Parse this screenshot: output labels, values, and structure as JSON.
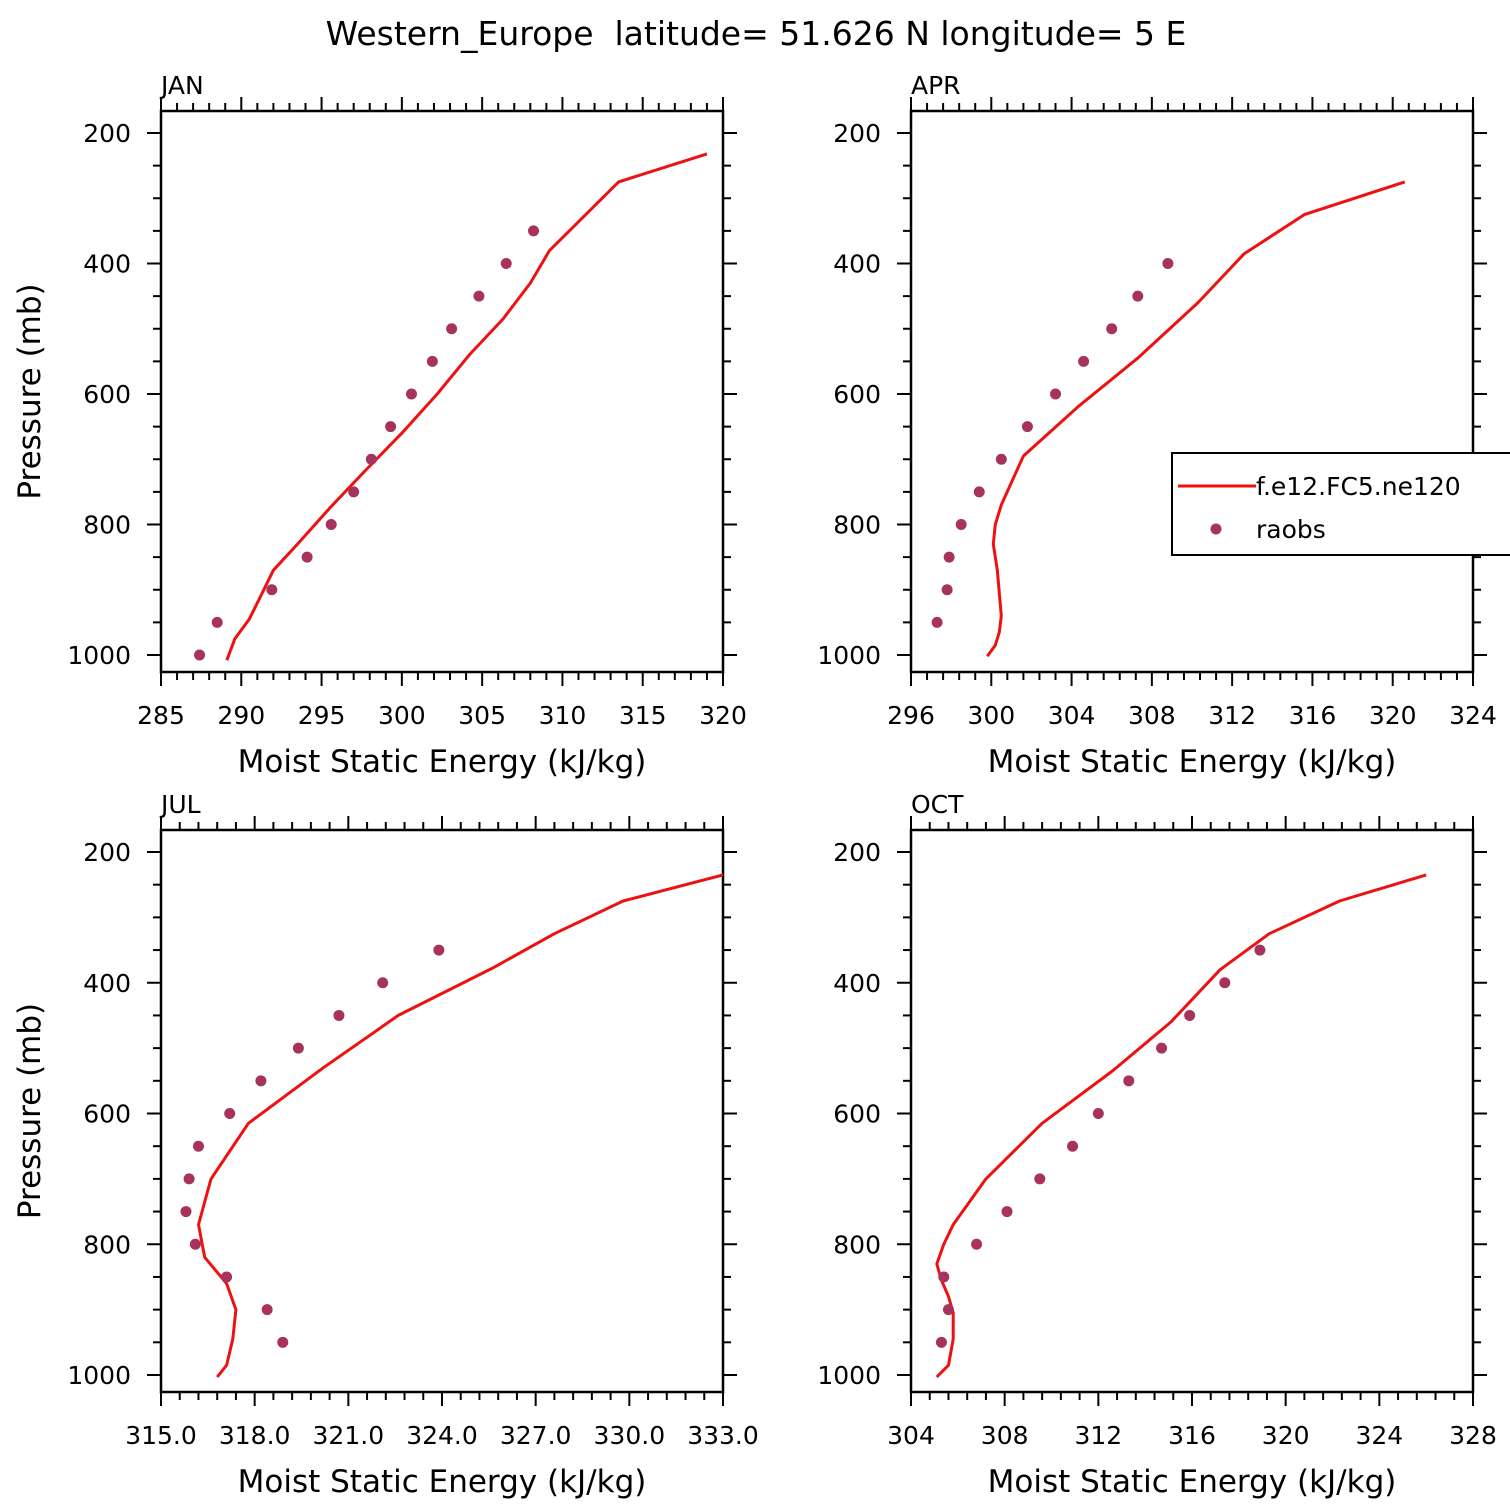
{
  "figure_title": "Western_Europe  latitude= 51.626 N longitude= 5 E",
  "colors": {
    "model": "#ee1111",
    "obs": "#a8325e",
    "axis": "#000000"
  },
  "legend": {
    "model_label": "f.e12.FC5.ne120",
    "obs_label": "raobs",
    "panel": "APR"
  },
  "chart_data": [
    {
      "panel": "JAN",
      "type": "line",
      "title": "JAN",
      "xlabel": "Moist Static Energy (kJ/kg)",
      "ylabel": "Pressure (mb)",
      "xlim": [
        285,
        320
      ],
      "ylim": [
        1000,
        200
      ],
      "x_ticks": [
        285,
        290,
        295,
        300,
        305,
        310,
        315,
        320
      ],
      "x_tick_labels": [
        "285",
        "290",
        "295",
        "300",
        "305",
        "310",
        "315",
        "320"
      ],
      "y_ticks": [
        200,
        400,
        600,
        800,
        1000
      ],
      "y_tick_labels": [
        "200",
        "400",
        "600",
        "800",
        "1000"
      ],
      "series": [
        {
          "name": "f.e12.FC5.ne120",
          "kind": "line",
          "x": [
            289.1,
            289.6,
            290.5,
            291.2,
            292.0,
            293.5,
            295.5,
            297.7,
            300.0,
            302.2,
            304.2,
            306.3,
            308.0,
            309.2,
            313.5,
            319.0
          ],
          "y": [
            1008,
            975,
            945,
            910,
            870,
            830,
            775,
            718,
            660,
            600,
            540,
            485,
            430,
            380,
            275,
            232
          ]
        },
        {
          "name": "raobs",
          "kind": "scatter",
          "x": [
            287.4,
            288.5,
            291.9,
            294.1,
            295.6,
            297.0,
            298.1,
            299.3,
            300.6,
            301.9,
            303.1,
            304.8,
            306.5,
            308.2
          ],
          "y": [
            1000,
            950,
            900,
            850,
            800,
            750,
            700,
            650,
            600,
            550,
            500,
            450,
            400,
            350
          ]
        }
      ]
    },
    {
      "panel": "APR",
      "type": "line",
      "title": "APR",
      "xlabel": "Moist Static Energy (kJ/kg)",
      "ylabel": "",
      "xlim": [
        296,
        324
      ],
      "ylim": [
        1000,
        200
      ],
      "x_ticks": [
        296,
        300,
        304,
        308,
        312,
        316,
        320,
        324
      ],
      "x_tick_labels": [
        "296",
        "300",
        "304",
        "308",
        "312",
        "316",
        "320",
        "324"
      ],
      "y_ticks": [
        200,
        400,
        600,
        800,
        1000
      ],
      "y_tick_labels": [
        "200",
        "400",
        "600",
        "800",
        "1000"
      ],
      "series": [
        {
          "name": "f.e12.FC5.ne120",
          "kind": "line",
          "x": [
            299.8,
            300.2,
            300.4,
            300.5,
            300.4,
            300.3,
            300.1,
            300.2,
            300.5,
            301.6,
            304.3,
            307.3,
            310.3,
            312.6,
            315.6,
            320.6
          ],
          "y": [
            1002,
            985,
            965,
            940,
            905,
            870,
            830,
            800,
            770,
            695,
            620,
            545,
            460,
            385,
            325,
            275
          ]
        },
        {
          "name": "raobs",
          "kind": "scatter",
          "x": [
            297.3,
            297.8,
            297.9,
            298.5,
            299.4,
            300.5,
            301.8,
            303.2,
            304.6,
            306.0,
            307.3,
            308.8
          ],
          "y": [
            950,
            900,
            850,
            800,
            750,
            700,
            650,
            600,
            550,
            500,
            450,
            400
          ]
        }
      ]
    },
    {
      "panel": "JUL",
      "type": "line",
      "title": "JUL",
      "xlabel": "Moist Static Energy (kJ/kg)",
      "ylabel": "Pressure (mb)",
      "xlim": [
        315.0,
        333.0
      ],
      "ylim": [
        1000,
        200
      ],
      "x_ticks": [
        315.0,
        318.0,
        321.0,
        324.0,
        327.0,
        330.0,
        333.0
      ],
      "x_tick_labels": [
        "315.0",
        "318.0",
        "321.0",
        "324.0",
        "327.0",
        "330.0",
        "333.0"
      ],
      "y_ticks": [
        200,
        400,
        600,
        800,
        1000
      ],
      "y_tick_labels": [
        "200",
        "400",
        "600",
        "800",
        "1000"
      ],
      "series": [
        {
          "name": "f.e12.FC5.ne120",
          "kind": "line",
          "x": [
            316.8,
            317.1,
            317.3,
            317.4,
            317.1,
            316.4,
            316.2,
            316.6,
            317.8,
            320.2,
            322.6,
            325.6,
            327.6,
            329.8,
            333.0
          ],
          "y": [
            1003,
            985,
            945,
            900,
            860,
            820,
            770,
            700,
            615,
            530,
            450,
            378,
            325,
            275,
            235
          ]
        },
        {
          "name": "raobs",
          "kind": "scatter",
          "x": [
            318.9,
            318.4,
            317.1,
            316.1,
            315.8,
            315.9,
            316.2,
            317.2,
            318.2,
            319.4,
            320.7,
            322.1,
            323.9
          ],
          "y": [
            950,
            900,
            850,
            800,
            750,
            700,
            650,
            600,
            550,
            500,
            450,
            400,
            350
          ]
        }
      ]
    },
    {
      "panel": "OCT",
      "type": "line",
      "title": "OCT",
      "xlabel": "Moist Static Energy (kJ/kg)",
      "ylabel": "",
      "xlim": [
        304,
        328
      ],
      "ylim": [
        1000,
        200
      ],
      "x_ticks": [
        304,
        308,
        312,
        316,
        320,
        324,
        328
      ],
      "x_tick_labels": [
        "304",
        "308",
        "312",
        "316",
        "320",
        "324",
        "328"
      ],
      "y_ticks": [
        200,
        400,
        600,
        800,
        1000
      ],
      "y_tick_labels": [
        "200",
        "400",
        "600",
        "800",
        "1000"
      ],
      "series": [
        {
          "name": "f.e12.FC5.ne120",
          "kind": "line",
          "x": [
            305.1,
            305.6,
            305.8,
            305.8,
            305.6,
            305.3,
            305.1,
            305.4,
            305.8,
            307.2,
            309.6,
            312.6,
            315.1,
            317.2,
            319.3,
            322.3,
            326.0
          ],
          "y": [
            1003,
            985,
            945,
            905,
            880,
            855,
            830,
            800,
            770,
            700,
            615,
            535,
            460,
            380,
            325,
            275,
            235
          ]
        },
        {
          "name": "raobs",
          "kind": "scatter",
          "x": [
            305.3,
            305.6,
            305.4,
            306.8,
            308.1,
            309.5,
            310.9,
            312.0,
            313.3,
            314.7,
            315.9,
            317.4,
            318.9
          ],
          "y": [
            950,
            900,
            850,
            800,
            750,
            700,
            650,
            600,
            550,
            500,
            450,
            400,
            350
          ]
        }
      ]
    }
  ]
}
